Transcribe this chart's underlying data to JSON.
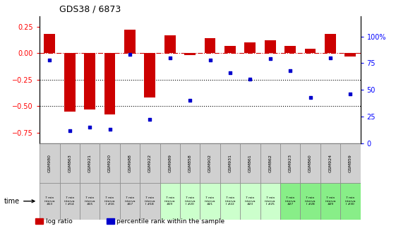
{
  "title": "GDS38 / 6873",
  "samples": [
    "GSM980",
    "GSM863",
    "GSM921",
    "GSM920",
    "GSM988",
    "GSM922",
    "GSM989",
    "GSM858",
    "GSM902",
    "GSM931",
    "GSM861",
    "GSM862",
    "GSM923",
    "GSM860",
    "GSM924",
    "GSM859"
  ],
  "time_labels": [
    "7 min\ninterva\n#13",
    "7 min\ninterva\nl #14",
    "7 min\ninterva\n#15",
    "7 min\ninterva\nl #16",
    "7 min\ninterva\n#17",
    "7 min\ninterva\nl #18",
    "7 min\ninterva\n#19",
    "7 min\ninterva\nl #20",
    "7 min\ninterva\n#21",
    "7 min\ninterva\nl #22",
    "7 min\ninterva\n#23",
    "7 min\ninterva\nl #25",
    "7 min\ninterva\n#27",
    "7 min\ninterva\nl #28",
    "7 min\ninterva\n#29",
    "7 min\ninterva\nl #30"
  ],
  "log_ratio": [
    0.18,
    -0.55,
    -0.53,
    -0.58,
    0.22,
    -0.42,
    0.17,
    -0.02,
    0.14,
    0.07,
    0.1,
    0.12,
    0.07,
    0.04,
    0.18,
    -0.03
  ],
  "percentile": [
    78,
    12,
    15,
    13,
    83,
    22,
    80,
    40,
    78,
    66,
    60,
    79,
    68,
    43,
    80,
    46
  ],
  "bar_color": "#cc0000",
  "dot_color": "#0000cc",
  "zero_line_color": "#cc0000",
  "dotted_line_color": "#000000",
  "ylim_left": [
    -0.85,
    0.35
  ],
  "yticks_left": [
    0.25,
    0.0,
    -0.25,
    -0.5,
    -0.75
  ],
  "ylim_right": [
    0,
    119
  ],
  "yticks_right": [
    0,
    25,
    50,
    75,
    100
  ],
  "ytick_right_labels": [
    "0",
    "25",
    "50",
    "75",
    "100%"
  ],
  "sample_box_color": "#d0d0d0",
  "time_row_colors": [
    "#d0d0d0",
    "#d0d0d0",
    "#d0d0d0",
    "#d0d0d0",
    "#d0d0d0",
    "#d0d0d0",
    "#ccffcc",
    "#ccffcc",
    "#ccffcc",
    "#ccffcc",
    "#ccffcc",
    "#ccffcc",
    "#88ee88",
    "#88ee88",
    "#88ee88",
    "#88ee88"
  ]
}
